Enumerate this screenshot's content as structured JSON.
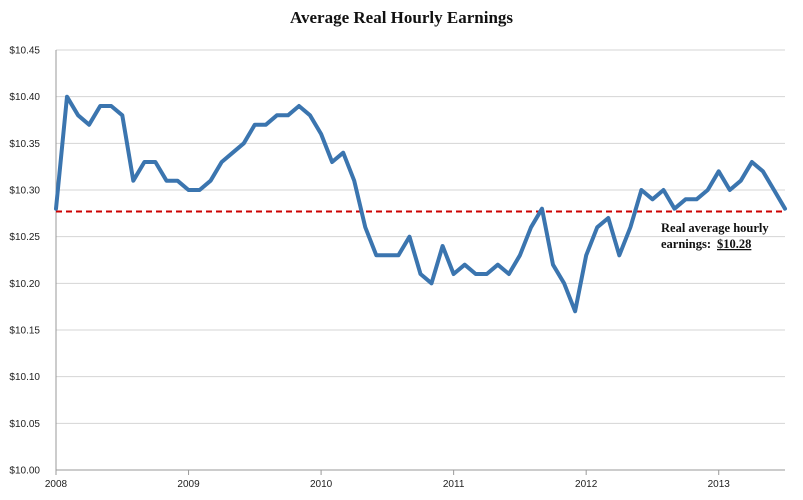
{
  "chart_data": {
    "type": "line",
    "title": "Average Real Hourly Earnings",
    "xlabel": "",
    "ylabel": "",
    "ylim": [
      10.0,
      10.45
    ],
    "yticks": [
      "$10.45",
      "$10.40",
      "$10.35",
      "$10.30",
      "$10.25",
      "$10.20",
      "$10.15",
      "$10.10",
      "$10.05",
      "$10.00"
    ],
    "ytick_values": [
      10.45,
      10.4,
      10.35,
      10.3,
      10.25,
      10.2,
      10.15,
      10.1,
      10.05,
      10.0
    ],
    "xticks": [
      "2008",
      "2009",
      "2010",
      "2011",
      "2012",
      "2013"
    ],
    "xtick_index": [
      0,
      12,
      24,
      36,
      48,
      60
    ],
    "grid": "horizontal",
    "series": [
      {
        "color": "#3B75AF",
        "values": [
          10.28,
          10.4,
          10.38,
          10.37,
          10.39,
          10.39,
          10.38,
          10.31,
          10.33,
          10.33,
          10.31,
          10.31,
          10.3,
          10.3,
          10.31,
          10.33,
          10.34,
          10.35,
          10.37,
          10.37,
          10.38,
          10.38,
          10.39,
          10.38,
          10.36,
          10.33,
          10.34,
          10.31,
          10.26,
          10.23,
          10.23,
          10.23,
          10.25,
          10.21,
          10.2,
          10.24,
          10.21,
          10.22,
          10.21,
          10.21,
          10.22,
          10.21,
          10.23,
          10.26,
          10.28,
          10.22,
          10.2,
          10.17,
          10.23,
          10.26,
          10.27,
          10.23,
          10.26,
          10.3,
          10.29,
          10.3,
          10.28,
          10.29,
          10.29,
          10.3,
          10.32,
          10.3,
          10.31,
          10.33,
          10.32,
          10.3,
          10.28
        ]
      }
    ],
    "reference_line": {
      "value": 10.277,
      "color": "#CC0000",
      "style": "dashed"
    },
    "annotation": {
      "line1": "Real average hourly",
      "line2_prefix": "earnings:",
      "line2_value": "$10.28"
    }
  }
}
